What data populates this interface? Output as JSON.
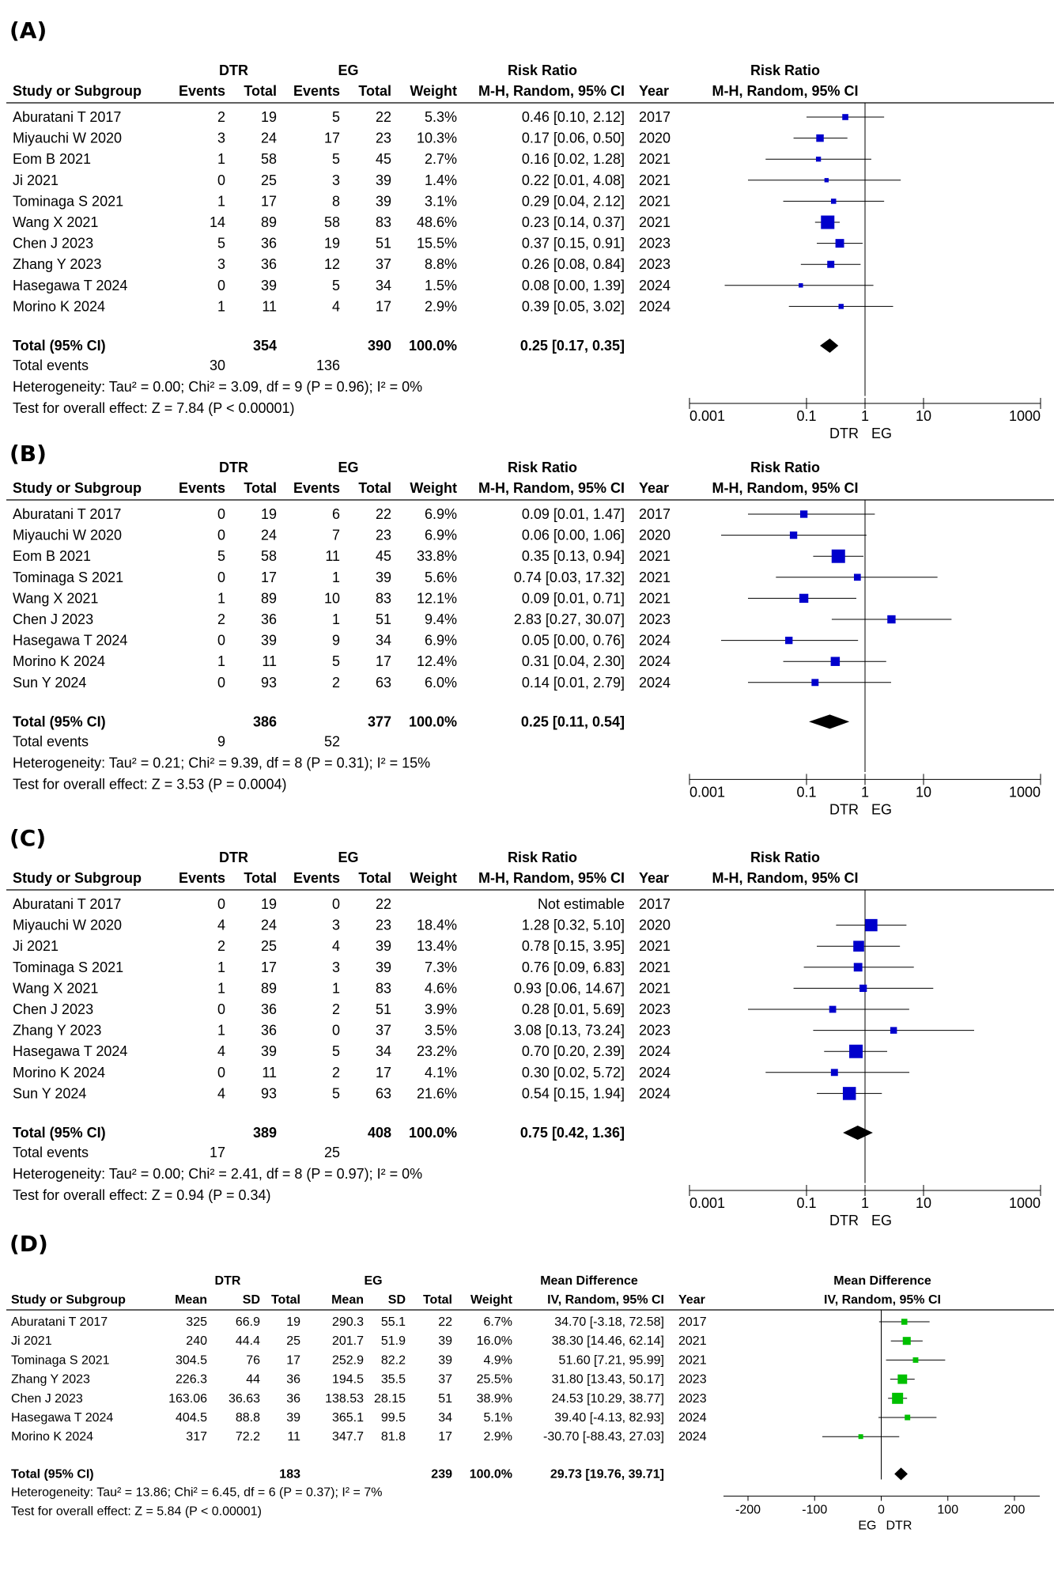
{
  "chart_data": [
    {
      "type": "forest",
      "panel_label": "(A)",
      "measure": "Risk Ratio",
      "method": "M-H, Random, 95% CI",
      "group1": "DTR",
      "group2": "EG",
      "headers": {
        "study": "Study or Subgroup",
        "events": "Events",
        "total": "Total",
        "weight": "Weight",
        "year": "Year"
      },
      "studies": [
        {
          "name": "Aburatani T 2017",
          "e1": "2",
          "t1": "19",
          "e2": "5",
          "t2": "22",
          "weight": "5.3%",
          "ci_text": "0.46 [0.10, 2.12]",
          "year": "2017",
          "est": 0.46,
          "lo": 0.1,
          "hi": 2.12
        },
        {
          "name": "Miyauchi W 2020",
          "e1": "3",
          "t1": "24",
          "e2": "17",
          "t2": "23",
          "weight": "10.3%",
          "ci_text": "0.17 [0.06, 0.50]",
          "year": "2020",
          "est": 0.17,
          "lo": 0.06,
          "hi": 0.5
        },
        {
          "name": "Eom B 2021",
          "e1": "1",
          "t1": "58",
          "e2": "5",
          "t2": "45",
          "weight": "2.7%",
          "ci_text": "0.16 [0.02, 1.28]",
          "year": "2021",
          "est": 0.16,
          "lo": 0.02,
          "hi": 1.28
        },
        {
          "name": "Ji 2021",
          "e1": "0",
          "t1": "25",
          "e2": "3",
          "t2": "39",
          "weight": "1.4%",
          "ci_text": "0.22 [0.01, 4.08]",
          "year": "2021",
          "est": 0.22,
          "lo": 0.01,
          "hi": 4.08
        },
        {
          "name": "Tominaga S 2021",
          "e1": "1",
          "t1": "17",
          "e2": "8",
          "t2": "39",
          "weight": "3.1%",
          "ci_text": "0.29 [0.04, 2.12]",
          "year": "2021",
          "est": 0.29,
          "lo": 0.04,
          "hi": 2.12
        },
        {
          "name": "Wang X 2021",
          "e1": "14",
          "t1": "89",
          "e2": "58",
          "t2": "83",
          "weight": "48.6%",
          "ci_text": "0.23 [0.14, 0.37]",
          "year": "2021",
          "est": 0.23,
          "lo": 0.14,
          "hi": 0.37
        },
        {
          "name": "Chen J 2023",
          "e1": "5",
          "t1": "36",
          "e2": "19",
          "t2": "51",
          "weight": "15.5%",
          "ci_text": "0.37 [0.15, 0.91]",
          "year": "2023",
          "est": 0.37,
          "lo": 0.15,
          "hi": 0.91
        },
        {
          "name": "Zhang Y 2023",
          "e1": "3",
          "t1": "36",
          "e2": "12",
          "t2": "37",
          "weight": "8.8%",
          "ci_text": "0.26 [0.08, 0.84]",
          "year": "2023",
          "est": 0.26,
          "lo": 0.08,
          "hi": 0.84
        },
        {
          "name": "Hasegawa T 2024",
          "e1": "0",
          "t1": "39",
          "e2": "5",
          "t2": "34",
          "weight": "1.5%",
          "ci_text": "0.08 [0.00, 1.39]",
          "year": "2024",
          "est": 0.08,
          "lo": 0.004,
          "hi": 1.39
        },
        {
          "name": "Morino K 2024",
          "e1": "1",
          "t1": "11",
          "e2": "4",
          "t2": "17",
          "weight": "2.9%",
          "ci_text": "0.39 [0.05, 3.02]",
          "year": "2024",
          "est": 0.39,
          "lo": 0.05,
          "hi": 3.02
        }
      ],
      "total": {
        "label": "Total (95% CI)",
        "t1": "354",
        "t2": "390",
        "weight": "100.0%",
        "ci_text": "0.25 [0.17, 0.35]",
        "est": 0.25,
        "lo": 0.17,
        "hi": 0.35
      },
      "total_events": {
        "label": "Total events",
        "e1": "30",
        "e2": "136"
      },
      "heterogeneity": "Heterogeneity: Tau² = 0.00; Chi² = 3.09, df = 9 (P = 0.96); I² = 0%",
      "overall": "Test for overall effect: Z = 7.84 (P < 0.00001)",
      "axis": {
        "scale": "log",
        "ticks": [
          0.001,
          0.1,
          1,
          10,
          1000
        ],
        "tick_labels": [
          "0.001",
          "0.1",
          "1",
          "10",
          "1000"
        ],
        "left_label": "DTR",
        "right_label": "EG"
      },
      "color": "#0000cc"
    },
    {
      "type": "forest",
      "panel_label": "(B)",
      "measure": "Risk Ratio",
      "method": "M-H, Random, 95% CI",
      "group1": "DTR",
      "group2": "EG",
      "headers": {
        "study": "Study or Subgroup",
        "events": "Events",
        "total": "Total",
        "weight": "Weight",
        "year": "Year"
      },
      "studies": [
        {
          "name": "Aburatani T 2017",
          "e1": "0",
          "t1": "19",
          "e2": "6",
          "t2": "22",
          "weight": "6.9%",
          "ci_text": "0.09 [0.01, 1.47]",
          "year": "2017",
          "est": 0.09,
          "lo": 0.01,
          "hi": 1.47
        },
        {
          "name": "Miyauchi W 2020",
          "e1": "0",
          "t1": "24",
          "e2": "7",
          "t2": "23",
          "weight": "6.9%",
          "ci_text": "0.06 [0.00, 1.06]",
          "year": "2020",
          "est": 0.06,
          "lo": 0.003,
          "hi": 1.06
        },
        {
          "name": "Eom B 2021",
          "e1": "5",
          "t1": "58",
          "e2": "11",
          "t2": "45",
          "weight": "33.8%",
          "ci_text": "0.35 [0.13, 0.94]",
          "year": "2021",
          "est": 0.35,
          "lo": 0.13,
          "hi": 0.94
        },
        {
          "name": "Tominaga S 2021",
          "e1": "0",
          "t1": "17",
          "e2": "1",
          "t2": "39",
          "weight": "5.6%",
          "ci_text": "0.74 [0.03, 17.32]",
          "year": "2021",
          "est": 0.74,
          "lo": 0.03,
          "hi": 17.32
        },
        {
          "name": "Wang X 2021",
          "e1": "1",
          "t1": "89",
          "e2": "10",
          "t2": "83",
          "weight": "12.1%",
          "ci_text": "0.09 [0.01, 0.71]",
          "year": "2021",
          "est": 0.09,
          "lo": 0.01,
          "hi": 0.71
        },
        {
          "name": "Chen J 2023",
          "e1": "2",
          "t1": "36",
          "e2": "1",
          "t2": "51",
          "weight": "9.4%",
          "ci_text": "2.83 [0.27, 30.07]",
          "year": "2023",
          "est": 2.83,
          "lo": 0.27,
          "hi": 30.07
        },
        {
          "name": "Hasegawa T 2024",
          "e1": "0",
          "t1": "39",
          "e2": "9",
          "t2": "34",
          "weight": "6.9%",
          "ci_text": "0.05 [0.00, 0.76]",
          "year": "2024",
          "est": 0.05,
          "lo": 0.003,
          "hi": 0.76
        },
        {
          "name": "Morino K 2024",
          "e1": "1",
          "t1": "11",
          "e2": "5",
          "t2": "17",
          "weight": "12.4%",
          "ci_text": "0.31 [0.04, 2.30]",
          "year": "2024",
          "est": 0.31,
          "lo": 0.04,
          "hi": 2.3
        },
        {
          "name": "Sun Y 2024",
          "e1": "0",
          "t1": "93",
          "e2": "2",
          "t2": "63",
          "weight": "6.0%",
          "ci_text": "0.14 [0.01, 2.79]",
          "year": "2024",
          "est": 0.14,
          "lo": 0.01,
          "hi": 2.79
        }
      ],
      "total": {
        "label": "Total (95% CI)",
        "t1": "386",
        "t2": "377",
        "weight": "100.0%",
        "ci_text": "0.25 [0.11, 0.54]",
        "est": 0.25,
        "lo": 0.11,
        "hi": 0.54
      },
      "total_events": {
        "label": "Total events",
        "e1": "9",
        "e2": "52"
      },
      "heterogeneity": "Heterogeneity: Tau² = 0.21; Chi² = 9.39, df = 8 (P = 0.31); I² = 15%",
      "overall": "Test for overall effect: Z = 3.53 (P = 0.0004)",
      "axis": {
        "scale": "log",
        "ticks": [
          0.001,
          0.1,
          1,
          10,
          1000
        ],
        "tick_labels": [
          "0.001",
          "0.1",
          "1",
          "10",
          "1000"
        ],
        "left_label": "DTR",
        "right_label": "EG"
      },
      "color": "#0000cc"
    },
    {
      "type": "forest",
      "panel_label": "(C)",
      "measure": "Risk Ratio",
      "method": "M-H, Random, 95% CI",
      "group1": "DTR",
      "group2": "EG",
      "headers": {
        "study": "Study or Subgroup",
        "events": "Events",
        "total": "Total",
        "weight": "Weight",
        "year": "Year"
      },
      "studies": [
        {
          "name": "Aburatani T 2017",
          "e1": "0",
          "t1": "19",
          "e2": "0",
          "t2": "22",
          "weight": "",
          "ci_text": "Not estimable",
          "year": "2017",
          "est": null,
          "lo": null,
          "hi": null
        },
        {
          "name": "Miyauchi W 2020",
          "e1": "4",
          "t1": "24",
          "e2": "3",
          "t2": "23",
          "weight": "18.4%",
          "ci_text": "1.28 [0.32, 5.10]",
          "year": "2020",
          "est": 1.28,
          "lo": 0.32,
          "hi": 5.1
        },
        {
          "name": "Ji 2021",
          "e1": "2",
          "t1": "25",
          "e2": "4",
          "t2": "39",
          "weight": "13.4%",
          "ci_text": "0.78 [0.15, 3.95]",
          "year": "2021",
          "est": 0.78,
          "lo": 0.15,
          "hi": 3.95
        },
        {
          "name": "Tominaga S 2021",
          "e1": "1",
          "t1": "17",
          "e2": "3",
          "t2": "39",
          "weight": "7.3%",
          "ci_text": "0.76 [0.09, 6.83]",
          "year": "2021",
          "est": 0.76,
          "lo": 0.09,
          "hi": 6.83
        },
        {
          "name": "Wang X 2021",
          "e1": "1",
          "t1": "89",
          "e2": "1",
          "t2": "83",
          "weight": "4.6%",
          "ci_text": "0.93 [0.06, 14.67]",
          "year": "2021",
          "est": 0.93,
          "lo": 0.06,
          "hi": 14.67
        },
        {
          "name": "Chen J 2023",
          "e1": "0",
          "t1": "36",
          "e2": "2",
          "t2": "51",
          "weight": "3.9%",
          "ci_text": "0.28 [0.01, 5.69]",
          "year": "2023",
          "est": 0.28,
          "lo": 0.01,
          "hi": 5.69
        },
        {
          "name": "Zhang Y 2023",
          "e1": "1",
          "t1": "36",
          "e2": "0",
          "t2": "37",
          "weight": "3.5%",
          "ci_text": "3.08 [0.13, 73.24]",
          "year": "2023",
          "est": 3.08,
          "lo": 0.13,
          "hi": 73.24
        },
        {
          "name": "Hasegawa T 2024",
          "e1": "4",
          "t1": "39",
          "e2": "5",
          "t2": "34",
          "weight": "23.2%",
          "ci_text": "0.70 [0.20, 2.39]",
          "year": "2024",
          "est": 0.7,
          "lo": 0.2,
          "hi": 2.39
        },
        {
          "name": "Morino K 2024",
          "e1": "0",
          "t1": "11",
          "e2": "2",
          "t2": "17",
          "weight": "4.1%",
          "ci_text": "0.30 [0.02, 5.72]",
          "year": "2024",
          "est": 0.3,
          "lo": 0.02,
          "hi": 5.72
        },
        {
          "name": "Sun Y 2024",
          "e1": "4",
          "t1": "93",
          "e2": "5",
          "t2": "63",
          "weight": "21.6%",
          "ci_text": "0.54 [0.15, 1.94]",
          "year": "2024",
          "est": 0.54,
          "lo": 0.15,
          "hi": 1.94
        }
      ],
      "total": {
        "label": "Total (95% CI)",
        "t1": "389",
        "t2": "408",
        "weight": "100.0%",
        "ci_text": "0.75 [0.42, 1.36]",
        "est": 0.75,
        "lo": 0.42,
        "hi": 1.36
      },
      "total_events": {
        "label": "Total events",
        "e1": "17",
        "e2": "25"
      },
      "heterogeneity": "Heterogeneity: Tau² = 0.00; Chi² = 2.41, df = 8 (P = 0.97); I² = 0%",
      "overall": "Test for overall effect: Z = 0.94 (P = 0.34)",
      "axis": {
        "scale": "log",
        "ticks": [
          0.001,
          0.1,
          1,
          10,
          1000
        ],
        "tick_labels": [
          "0.001",
          "0.1",
          "1",
          "10",
          "1000"
        ],
        "left_label": "DTR",
        "right_label": "EG"
      },
      "color": "#0000cc"
    },
    {
      "type": "forest",
      "panel_label": "(D)",
      "measure": "Mean Difference",
      "method": "IV, Random, 95% CI",
      "group1": "DTR",
      "group2": "EG",
      "headers": {
        "study": "Study or Subgroup",
        "mean": "Mean",
        "sd": "SD",
        "total": "Total",
        "weight": "Weight",
        "year": "Year"
      },
      "studies": [
        {
          "name": "Aburatani T 2017",
          "m1": "325",
          "sd1": "66.9",
          "t1": "19",
          "m2": "290.3",
          "sd2": "55.1",
          "t2": "22",
          "weight": "6.7%",
          "ci_text": "34.70 [-3.18, 72.58]",
          "year": "2017",
          "est": 34.7,
          "lo": -3.18,
          "hi": 72.58
        },
        {
          "name": "Ji 2021",
          "m1": "240",
          "sd1": "44.4",
          "t1": "25",
          "m2": "201.7",
          "sd2": "51.9",
          "t2": "39",
          "weight": "16.0%",
          "ci_text": "38.30 [14.46, 62.14]",
          "year": "2021",
          "est": 38.3,
          "lo": 14.46,
          "hi": 62.14
        },
        {
          "name": "Tominaga S 2021",
          "m1": "304.5",
          "sd1": "76",
          "t1": "17",
          "m2": "252.9",
          "sd2": "82.2",
          "t2": "39",
          "weight": "4.9%",
          "ci_text": "51.60 [7.21, 95.99]",
          "year": "2021",
          "est": 51.6,
          "lo": 7.21,
          "hi": 95.99
        },
        {
          "name": "Zhang Y 2023",
          "m1": "226.3",
          "sd1": "44",
          "t1": "36",
          "m2": "194.5",
          "sd2": "35.5",
          "t2": "37",
          "weight": "25.5%",
          "ci_text": "31.80 [13.43, 50.17]",
          "year": "2023",
          "est": 31.8,
          "lo": 13.43,
          "hi": 50.17
        },
        {
          "name": "Chen J 2023",
          "m1": "163.06",
          "sd1": "36.63",
          "t1": "36",
          "m2": "138.53",
          "sd2": "28.15",
          "t2": "51",
          "weight": "38.9%",
          "ci_text": "24.53 [10.29, 38.77]",
          "year": "2023",
          "est": 24.53,
          "lo": 10.29,
          "hi": 38.77
        },
        {
          "name": "Hasegawa T 2024",
          "m1": "404.5",
          "sd1": "88.8",
          "t1": "39",
          "m2": "365.1",
          "sd2": "99.5",
          "t2": "34",
          "weight": "5.1%",
          "ci_text": "39.40 [-4.13, 82.93]",
          "year": "2024",
          "est": 39.4,
          "lo": -4.13,
          "hi": 82.93
        },
        {
          "name": "Morino K 2024",
          "m1": "317",
          "sd1": "72.2",
          "t1": "11",
          "m2": "347.7",
          "sd2": "81.8",
          "t2": "17",
          "weight": "2.9%",
          "ci_text": "-30.70 [-88.43, 27.03]",
          "year": "2024",
          "est": -30.7,
          "lo": -88.43,
          "hi": 27.03
        }
      ],
      "total": {
        "label": "Total (95% CI)",
        "t1": "183",
        "t2": "239",
        "weight": "100.0%",
        "ci_text": "29.73 [19.76, 39.71]",
        "est": 29.73,
        "lo": 19.76,
        "hi": 39.71
      },
      "heterogeneity": "Heterogeneity: Tau² = 13.86; Chi² = 6.45, df = 6 (P = 0.37); I² = 7%",
      "overall": "Test for overall effect: Z = 5.84 (P < 0.00001)",
      "axis": {
        "scale": "linear",
        "ticks": [
          -200,
          -100,
          0,
          100,
          200
        ],
        "tick_labels": [
          "-200",
          "-100",
          "0",
          "100",
          "200"
        ],
        "left_label": "EG",
        "right_label": "DTR"
      },
      "color": "#00c000"
    }
  ]
}
